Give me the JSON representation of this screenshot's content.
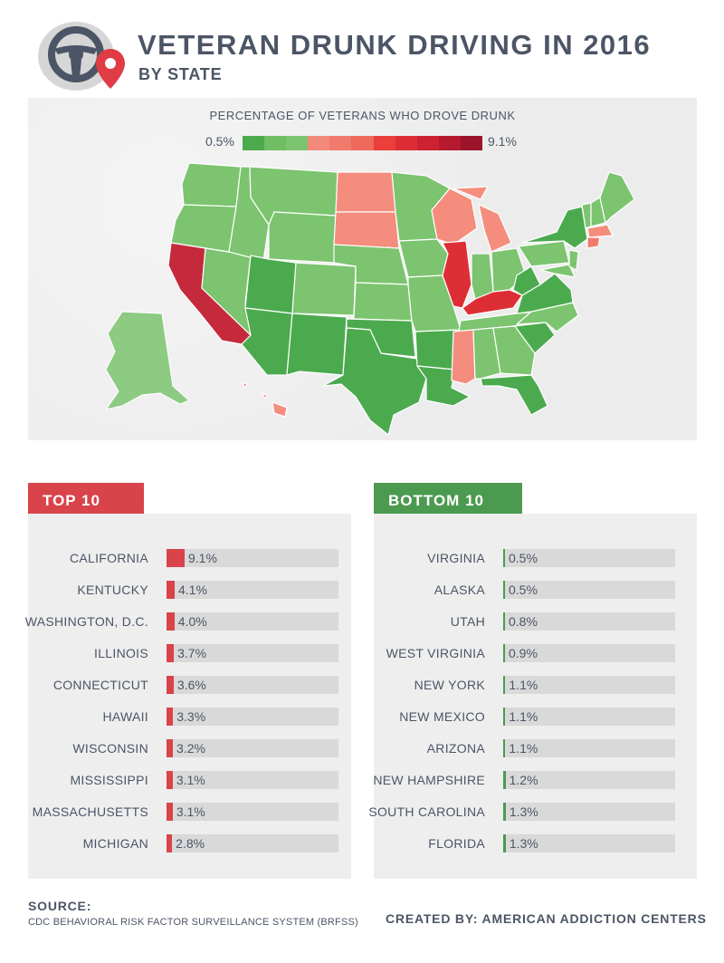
{
  "header": {
    "title": "VETERAN DRUNK DRIVING IN 2016",
    "subtitle": "BY STATE"
  },
  "legend": {
    "title": "PERCENTAGE OF VETERANS WHO DROVE DRUNK",
    "min_label": "0.5%",
    "max_label": "9.1%",
    "colors": [
      "#4caa4e",
      "#6fbe63",
      "#7cc46f",
      "#f28a7c",
      "#f07a6c",
      "#ee6a5c",
      "#ea3f3a",
      "#de2e35",
      "#cc2232",
      "#b51a2e",
      "#9c1429"
    ]
  },
  "colors": {
    "red": "#d9434a",
    "green": "#4c9a4f",
    "high": "#c52a3c",
    "mid_red": "#f48d7d",
    "green_state": "#7cc46f",
    "dark_green": "#4caa4e"
  },
  "top10": {
    "title": "TOP 10",
    "items": [
      {
        "state": "CALIFORNIA",
        "value": 9.1,
        "label": "9.1%"
      },
      {
        "state": "KENTUCKY",
        "value": 4.1,
        "label": "4.1%"
      },
      {
        "state": "WASHINGTON, D.C.",
        "value": 4.0,
        "label": "4.0%"
      },
      {
        "state": "ILLINOIS",
        "value": 3.7,
        "label": "3.7%"
      },
      {
        "state": "CONNECTICUT",
        "value": 3.6,
        "label": "3.6%"
      },
      {
        "state": "HAWAII",
        "value": 3.3,
        "label": "3.3%"
      },
      {
        "state": "WISCONSIN",
        "value": 3.2,
        "label": "3.2%"
      },
      {
        "state": "MISSISSIPPI",
        "value": 3.1,
        "label": "3.1%"
      },
      {
        "state": "MASSACHUSETTS",
        "value": 3.1,
        "label": "3.1%"
      },
      {
        "state": "MICHIGAN",
        "value": 2.8,
        "label": "2.8%"
      }
    ]
  },
  "bottom10": {
    "title": "BOTTOM 10",
    "items": [
      {
        "state": "VIRGINIA",
        "value": 0.5,
        "label": "0.5%"
      },
      {
        "state": "ALASKA",
        "value": 0.5,
        "label": "0.5%"
      },
      {
        "state": "UTAH",
        "value": 0.8,
        "label": "0.8%"
      },
      {
        "state": "WEST VIRGINIA",
        "value": 0.9,
        "label": "0.9%"
      },
      {
        "state": "NEW YORK",
        "value": 1.1,
        "label": "1.1%"
      },
      {
        "state": "NEW MEXICO",
        "value": 1.1,
        "label": "1.1%"
      },
      {
        "state": "ARIZONA",
        "value": 1.1,
        "label": "1.1%"
      },
      {
        "state": "NEW HAMPSHIRE",
        "value": 1.2,
        "label": "1.2%"
      },
      {
        "state": "SOUTH CAROLINA",
        "value": 1.3,
        "label": "1.3%"
      },
      {
        "state": "FLORIDA",
        "value": 1.3,
        "label": "1.3%"
      }
    ]
  },
  "footer": {
    "source_heading": "SOURCE:",
    "source_text": "CDC BEHAVIORAL RISK FACTOR SURVEILLANCE SYSTEM (BRFSS)",
    "credit": "CREATED BY: AMERICAN ADDICTION CENTERS"
  }
}
